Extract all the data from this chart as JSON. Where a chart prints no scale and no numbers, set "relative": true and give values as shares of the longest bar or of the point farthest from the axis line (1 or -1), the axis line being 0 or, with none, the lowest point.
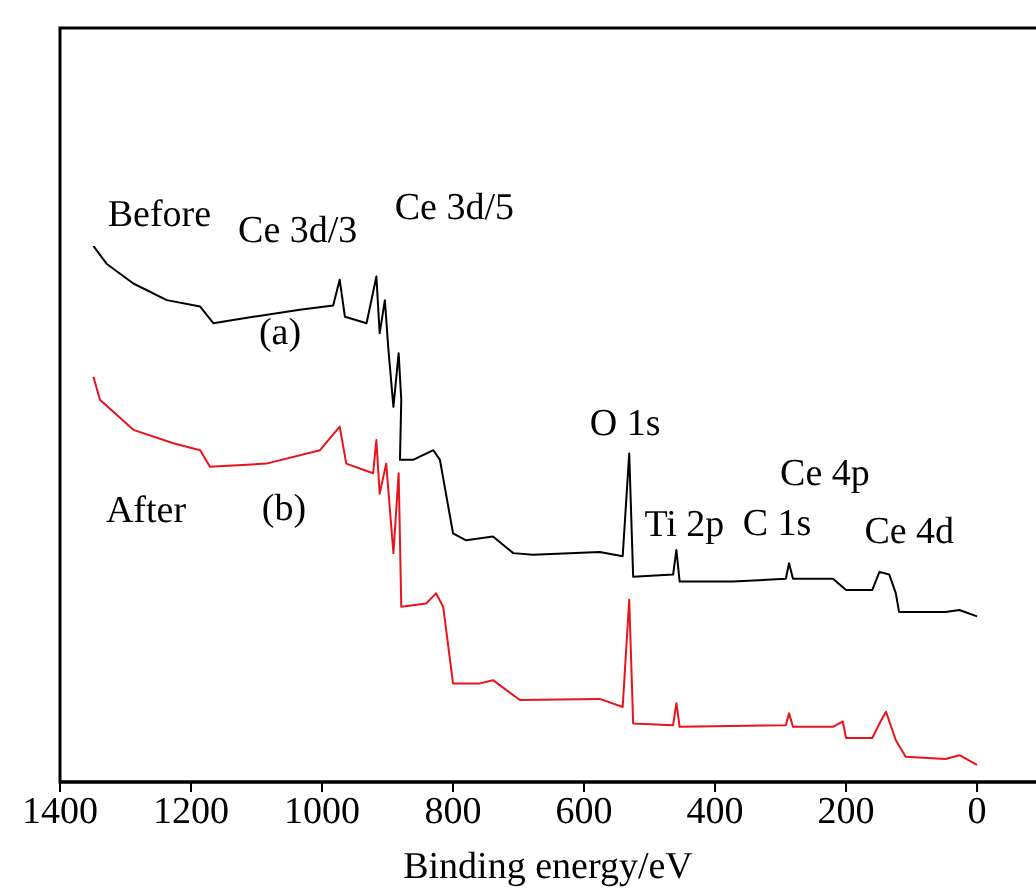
{
  "chart_data": {
    "type": "line",
    "relative": true,
    "xlabel": "Binding energy/eV",
    "xlim": [
      1400,
      -90
    ],
    "xticks": [
      1400,
      1200,
      1000,
      800,
      600,
      400,
      200,
      0
    ],
    "grid": false,
    "legend": false,
    "marker": "none",
    "line_style": "solid",
    "series": [
      {
        "color": "#000000",
        "x": [
          1349,
          1329,
          1288,
          1237,
          1186,
          1166,
          1105,
          1034,
          983,
          973,
          965,
          932,
          917,
          912,
          904,
          899,
          891,
          883,
          879,
          881,
          861,
          830,
          820,
          800,
          780,
          739,
          708,
          678,
          576,
          541,
          531,
          525,
          464,
          459,
          454,
          373,
          292,
          287,
          281,
          220,
          200,
          160,
          149,
          134,
          124,
          119,
          48,
          27,
          0
        ],
        "values": [
          1.0,
          0.967,
          0.93,
          0.899,
          0.887,
          0.856,
          0.868,
          0.881,
          0.889,
          0.937,
          0.868,
          0.856,
          0.943,
          0.837,
          0.899,
          0.812,
          0.7,
          0.8,
          0.713,
          0.601,
          0.601,
          0.619,
          0.601,
          0.464,
          0.451,
          0.458,
          0.427,
          0.424,
          0.429,
          0.421,
          0.613,
          0.383,
          0.387,
          0.433,
          0.374,
          0.374,
          0.379,
          0.408,
          0.379,
          0.379,
          0.358,
          0.358,
          0.392,
          0.387,
          0.352,
          0.317,
          0.317,
          0.321,
          0.309
        ]
      },
      {
        "color": "#e8141b",
        "x": [
          1349,
          1339,
          1288,
          1227,
          1186,
          1171,
          1085,
          1003,
          973,
          963,
          922,
          917,
          912,
          902,
          891,
          883,
          879,
          841,
          826,
          815,
          800,
          759,
          739,
          698,
          576,
          541,
          531,
          525,
          464,
          459,
          454,
          292,
          287,
          281,
          220,
          205,
          200,
          160,
          149,
          139,
          124,
          109,
          48,
          27,
          0
        ],
        "values": [
          0.756,
          0.713,
          0.657,
          0.632,
          0.619,
          0.588,
          0.594,
          0.619,
          0.663,
          0.594,
          0.576,
          0.638,
          0.538,
          0.594,
          0.427,
          0.576,
          0.327,
          0.333,
          0.352,
          0.327,
          0.184,
          0.184,
          0.19,
          0.153,
          0.155,
          0.14,
          0.34,
          0.109,
          0.106,
          0.147,
          0.103,
          0.106,
          0.128,
          0.103,
          0.103,
          0.113,
          0.082,
          0.082,
          0.109,
          0.131,
          0.078,
          0.047,
          0.043,
          0.05,
          0.032
        ]
      }
    ],
    "annotations": [
      {
        "text": "Before",
        "x": 1349,
        "y": 1.0
      },
      "(a)",
      {
        "text": "Ce 3d/3",
        "x": 973,
        "y": 0.937
      },
      {
        "text": "Ce 3d/5",
        "x": 917,
        "y": 0.943
      },
      {
        "text": "O 1s",
        "x": 531,
        "y": 0.613
      },
      {
        "text": "Ti 2p",
        "x": 459,
        "y": 0.433
      },
      {
        "text": "C 1s",
        "x": 287,
        "y": 0.408
      },
      {
        "text": "Ce 4p",
        "x": 220,
        "y": 0.379
      },
      {
        "text": "Ce 4d",
        "x": 134,
        "y": 0.387
      },
      "After",
      "(b)"
    ]
  }
}
